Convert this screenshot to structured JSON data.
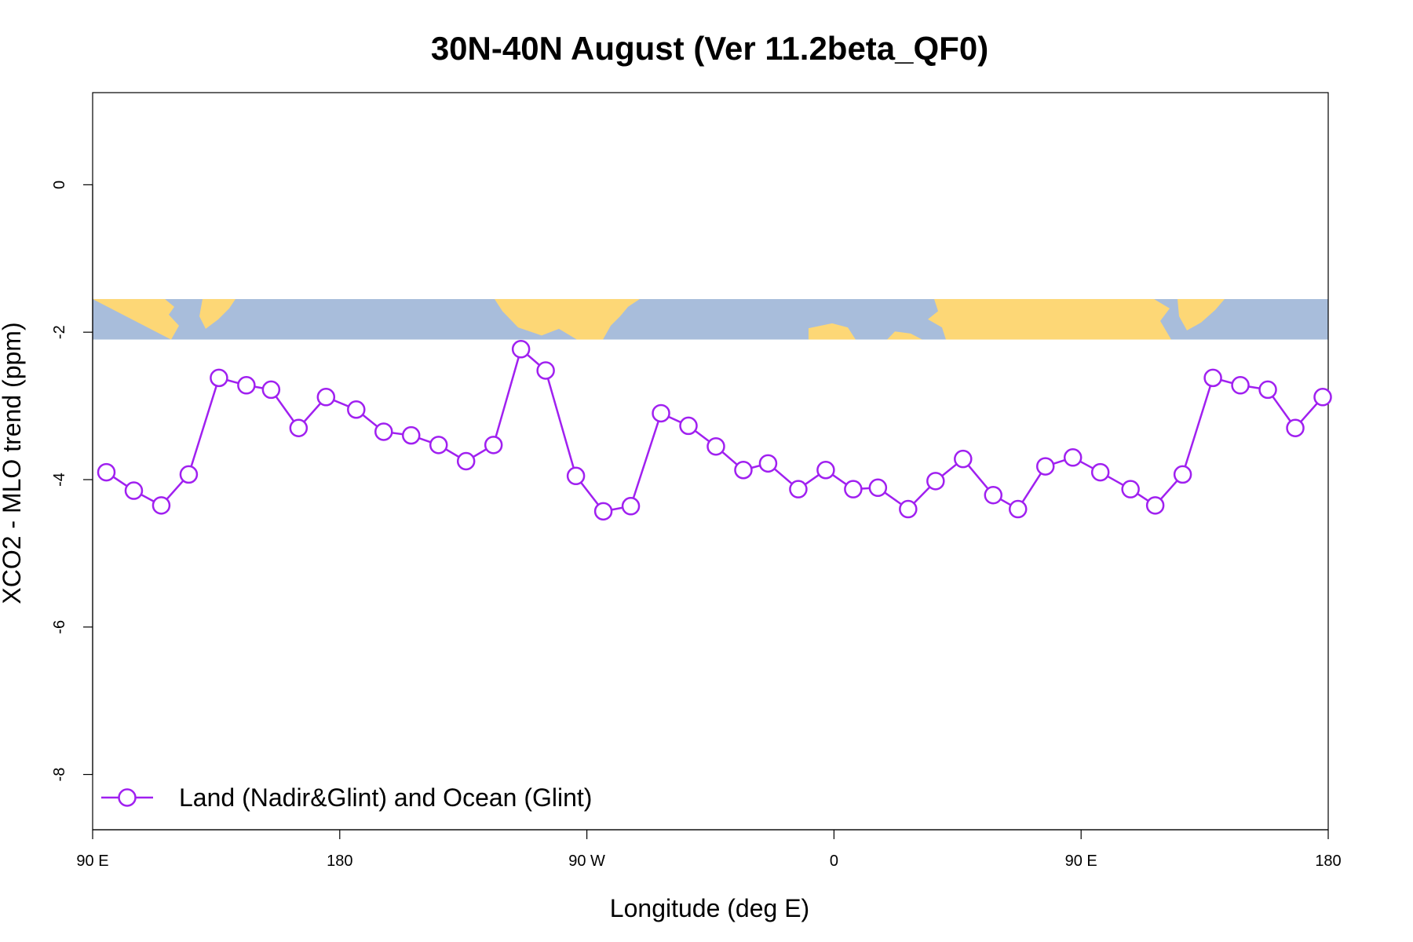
{
  "chart_data": {
    "type": "line",
    "title": "30N-40N August (Ver 11.2beta_QF0)",
    "xlabel": "Longitude (deg E)",
    "ylabel": "XCO2 - MLO trend (ppm)",
    "xlim": [
      90,
      540
    ],
    "ylim": [
      -8.75,
      1.25
    ],
    "x_ticks": [
      {
        "value": 90,
        "label": "90 E"
      },
      {
        "value": 180,
        "label": "180"
      },
      {
        "value": 270,
        "label": "90 W"
      },
      {
        "value": 360,
        "label": "0"
      },
      {
        "value": 450,
        "label": "90 E"
      },
      {
        "value": 540,
        "label": "180"
      }
    ],
    "y_ticks": [
      {
        "value": 0,
        "label": "0"
      },
      {
        "value": -2,
        "label": "-2"
      },
      {
        "value": -4,
        "label": "-4"
      },
      {
        "value": -6,
        "label": "-6"
      },
      {
        "value": -8,
        "label": "-8"
      }
    ],
    "map_band": {
      "y_top": -1.55,
      "y_bottom": -2.1,
      "ocean_color": "#a8bddb",
      "land_color": "#fdd776"
    },
    "grid": false,
    "legend": {
      "position": "bottom-left"
    },
    "series": [
      {
        "name": "Land (Nadir&Glint) and Ocean (Glint)",
        "color": "#a020f0",
        "marker": "open-circle",
        "points": [
          [
            95,
            -3.9
          ],
          [
            105,
            -4.15
          ],
          [
            115,
            -4.35
          ],
          [
            125,
            -3.93
          ],
          [
            136,
            -2.62
          ],
          [
            146,
            -2.72
          ],
          [
            155,
            -2.78
          ],
          [
            165,
            -3.3
          ],
          [
            175,
            -2.88
          ],
          [
            186,
            -3.05
          ],
          [
            196,
            -3.35
          ],
          [
            206,
            -3.4
          ],
          [
            216,
            -3.53
          ],
          [
            226,
            -3.75
          ],
          [
            236,
            -3.53
          ],
          [
            246,
            -2.23
          ],
          [
            255,
            -2.52
          ],
          [
            266,
            -3.95
          ],
          [
            276,
            -4.43
          ],
          [
            286,
            -4.36
          ],
          [
            297,
            -3.1
          ],
          [
            307,
            -3.27
          ],
          [
            317,
            -3.55
          ],
          [
            327,
            -3.87
          ],
          [
            336,
            -3.78
          ],
          [
            347,
            -4.13
          ],
          [
            357,
            -3.87
          ],
          [
            367,
            -4.13
          ],
          [
            376,
            -4.11
          ],
          [
            387,
            -4.4
          ],
          [
            397,
            -4.02
          ],
          [
            407,
            -3.72
          ],
          [
            418,
            -4.21
          ],
          [
            427,
            -4.4
          ],
          [
            437,
            -3.82
          ],
          [
            447,
            -3.7
          ],
          [
            457,
            -3.9
          ],
          [
            468,
            -4.13
          ],
          [
            477,
            -4.35
          ],
          [
            487,
            -3.93
          ],
          [
            498,
            -2.62
          ],
          [
            508,
            -2.72
          ],
          [
            518,
            -2.78
          ],
          [
            528,
            -3.3
          ],
          [
            538,
            -2.88
          ]
        ]
      }
    ]
  }
}
